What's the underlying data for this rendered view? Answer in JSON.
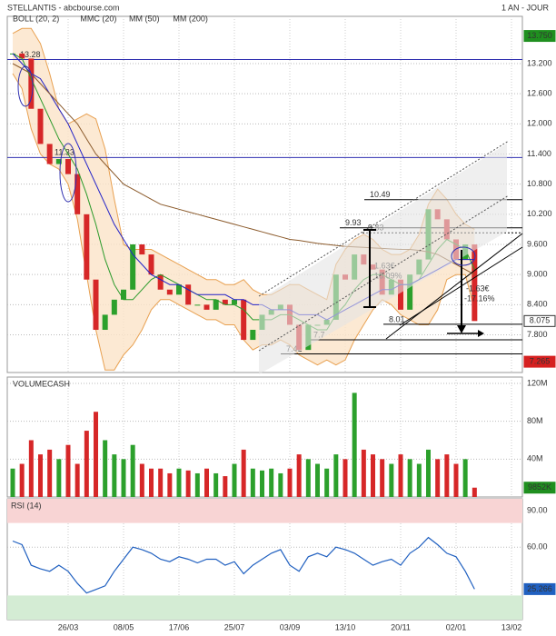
{
  "header": {
    "title": "STELLANTIS - abcbourse.com",
    "period": "1 AN - JOUR"
  },
  "chart_data": [
    {
      "type": "candlestick",
      "close": {
        "up_color": "#2ca02c",
        "down_color": "#d62728",
        "values": [
          13.4,
          13.3,
          12.3,
          11.6,
          11.2,
          11.3,
          11.0,
          10.2,
          8.9,
          7.9,
          8.2,
          8.5,
          8.7,
          9.6,
          9.4,
          9.0,
          8.7,
          8.6,
          8.8,
          8.4,
          8.4,
          8.3,
          8.5,
          8.4,
          8.5,
          7.7,
          7.9,
          8.2,
          8.3,
          8.4,
          8.0,
          7.5,
          8.0,
          8.0,
          8.1,
          9.0,
          8.9,
          9.4,
          9.2,
          9.1,
          8.6,
          8.9,
          8.3,
          9.0,
          9.3,
          10.3,
          10.1,
          9.7,
          9.3,
          9.6,
          8.075,
          null,
          null,
          null,
          null
        ]
      },
      "bands": {
        "name": "BOLL (20, 2)",
        "color": "#e8a050",
        "fill": "#fbe3c8",
        "upper": [
          13.8,
          13.9,
          13.9,
          13.6,
          13.0,
          12.3,
          12.0,
          12.1,
          12.2,
          12.1,
          11.5,
          10.5,
          9.6,
          9.5,
          9.5,
          9.5,
          9.4,
          9.3,
          9.2,
          9.1,
          9.0,
          8.9,
          8.9,
          8.8,
          8.8,
          8.9,
          8.7,
          8.6,
          8.6,
          8.7,
          8.8,
          8.8,
          8.7,
          8.6,
          8.5,
          9.2,
          9.5,
          9.7,
          9.8,
          9.7,
          9.5,
          9.4,
          9.4,
          9.5,
          9.8,
          10.4,
          10.7,
          10.5,
          10.2,
          10.0,
          9.9,
          null,
          null,
          null,
          null
        ],
        "lower": [
          13.0,
          12.7,
          11.9,
          11.4,
          11.2,
          11.1,
          10.8,
          10.1,
          9.0,
          7.9,
          7.1,
          7.1,
          7.4,
          7.6,
          7.9,
          8.3,
          8.5,
          8.5,
          8.4,
          8.3,
          8.2,
          8.1,
          8.1,
          8.0,
          8.0,
          7.7,
          7.5,
          7.6,
          7.6,
          7.7,
          7.6,
          7.4,
          7.3,
          7.2,
          7.3,
          7.2,
          7.3,
          7.7,
          8.0,
          8.3,
          8.5,
          8.4,
          8.2,
          8.1,
          8.0,
          8.0,
          8.3,
          8.9,
          9.0,
          9.0,
          8.3,
          null,
          null,
          null,
          null
        ]
      },
      "series": [
        {
          "name": "MMC (20)",
          "color": "#2a9a2a",
          "values": [
            13.4,
            13.3,
            12.9,
            12.5,
            12.1,
            11.7,
            11.4,
            11.1,
            10.6,
            10.0,
            9.3,
            8.8,
            8.5,
            8.5,
            8.7,
            8.9,
            9.0,
            8.9,
            8.8,
            8.7,
            8.6,
            8.5,
            8.5,
            8.4,
            8.4,
            8.3,
            8.1,
            8.1,
            8.1,
            8.2,
            8.2,
            8.1,
            8.0,
            7.9,
            7.9,
            8.2,
            8.4,
            8.7,
            8.9,
            9.0,
            9.0,
            8.9,
            8.8,
            8.8,
            8.9,
            9.2,
            9.5,
            9.7,
            9.6,
            9.5,
            9.1,
            null,
            null,
            null,
            null
          ]
        },
        {
          "name": "MM (50)",
          "color": "#2020c8",
          "values": [
            13.4,
            13.2,
            13.0,
            12.9,
            12.6,
            12.3,
            12.0,
            11.6,
            11.2,
            10.8,
            10.4,
            10.0,
            9.7,
            9.4,
            9.2,
            9.0,
            8.9,
            8.8,
            8.8,
            8.7,
            8.6,
            8.6,
            8.6,
            8.6,
            8.5,
            8.5,
            8.4,
            8.4,
            8.3,
            8.3,
            8.3,
            8.2,
            8.2,
            8.2,
            8.1,
            8.2,
            8.3,
            8.4,
            8.5,
            8.6,
            8.7,
            8.7,
            8.8,
            8.8,
            8.9,
            9.0,
            9.1,
            9.2,
            9.3,
            9.3,
            9.3,
            null,
            null,
            null,
            null
          ]
        },
        {
          "name": "MM (200)",
          "color": "#8b5a2b",
          "values": [
            13.2,
            13.1,
            13.0,
            12.8,
            12.6,
            12.4,
            12.2,
            12.0,
            11.7,
            11.4,
            11.2,
            11.0,
            10.8,
            10.7,
            10.6,
            10.5,
            10.4,
            10.35,
            10.3,
            10.25,
            10.2,
            10.15,
            10.1,
            10.05,
            10.0,
            9.95,
            9.9,
            9.85,
            9.8,
            9.75,
            9.7,
            9.68,
            9.65,
            9.62,
            9.6,
            9.58,
            9.56,
            9.55,
            9.54,
            9.53,
            9.52,
            9.51,
            9.5,
            9.5,
            9.48,
            9.45,
            9.4,
            9.3,
            9.2,
            9.1,
            9.0,
            null,
            null,
            null,
            null
          ]
        }
      ],
      "levels": [
        {
          "value": 13.28,
          "color": "#3030b0"
        },
        {
          "value": 11.33,
          "color": "#3030b0"
        },
        {
          "value": 10.49,
          "color": "#000000"
        },
        {
          "value": 9.93,
          "color": "#000000"
        },
        {
          "value": 9.83,
          "color": "#000000"
        },
        {
          "value": 8.01,
          "color": "#000000"
        },
        {
          "value": 7.7,
          "color": "#000000"
        },
        {
          "value": 7.42,
          "color": "#000000"
        }
      ],
      "annotations": [
        "1.63€",
        "18.09%",
        "-1.63€",
        "-17.16%"
      ],
      "high": {
        "value": 13.75,
        "label": "13.750"
      },
      "low": {
        "value": 7.265,
        "label": "7.265"
      },
      "ylim": [
        7.05,
        14.14
      ],
      "yticks": [
        {
          "value": 13.2,
          "label": "13.200"
        },
        {
          "value": 12.6,
          "label": "12.600"
        },
        {
          "value": 12.0,
          "label": "12.000"
        },
        {
          "value": 11.4,
          "label": "11.400"
        },
        {
          "value": 10.8,
          "label": "10.800"
        },
        {
          "value": 10.2,
          "label": "10.200"
        },
        {
          "value": 9.6,
          "label": "9.600"
        },
        {
          "value": 9.0,
          "label": "9.000"
        },
        {
          "value": 8.4,
          "label": "8.400"
        },
        {
          "value": 7.8,
          "label": "7.800"
        }
      ]
    },
    {
      "type": "bar",
      "title": "VOLUMECASH",
      "up_color": "#2ca02c",
      "down_color": "#d62728",
      "values": [
        30000000,
        35000000,
        60000000,
        45000000,
        50000000,
        40000000,
        55000000,
        35000000,
        70000000,
        90000000,
        60000000,
        45000000,
        40000000,
        55000000,
        35000000,
        30000000,
        30000000,
        25000000,
        30000000,
        28000000,
        25000000,
        30000000,
        25000000,
        22000000,
        35000000,
        50000000,
        30000000,
        28000000,
        30000000,
        25000000,
        30000000,
        45000000,
        40000000,
        35000000,
        30000000,
        45000000,
        40000000,
        110000000,
        50000000,
        45000000,
        40000000,
        35000000,
        45000000,
        40000000,
        35000000,
        50000000,
        40000000,
        45000000,
        35000000,
        40000000,
        9852000,
        null,
        null,
        null,
        null
      ],
      "last_label": "9852K",
      "ylim": [
        0,
        126700000
      ],
      "yticks": [
        {
          "value": 120000000,
          "label": "120M"
        },
        {
          "value": 80000000,
          "label": "80M"
        },
        {
          "value": 40000000,
          "label": "40M"
        }
      ]
    },
    {
      "type": "line",
      "title": "RSI (14)",
      "color": "#2060c0",
      "categories": [
        null,
        null,
        null,
        null,
        null,
        null,
        "26/03",
        null,
        null,
        null,
        null,
        null,
        "08/05",
        null,
        null,
        null,
        null,
        null,
        "17/06",
        null,
        null,
        null,
        null,
        null,
        "25/07",
        null,
        null,
        null,
        null,
        null,
        "03/09",
        null,
        null,
        null,
        null,
        null,
        "13/10",
        null,
        null,
        null,
        null,
        null,
        "20/11",
        null,
        null,
        null,
        null,
        null,
        "02/01",
        null,
        null,
        null,
        null,
        null,
        "13/02"
      ],
      "values": [
        65,
        62,
        45,
        42,
        40,
        45,
        40,
        30,
        22,
        25,
        28,
        40,
        50,
        60,
        58,
        55,
        50,
        48,
        52,
        50,
        47,
        50,
        50,
        45,
        48,
        38,
        45,
        50,
        55,
        58,
        45,
        40,
        52,
        55,
        52,
        60,
        58,
        55,
        50,
        45,
        48,
        50,
        45,
        55,
        60,
        68,
        62,
        55,
        52,
        40,
        25.266,
        null,
        null,
        null,
        null
      ],
      "zones": [
        {
          "from": 80,
          "to": 100,
          "color": "#f8d4d4"
        },
        {
          "from": 0,
          "to": 20,
          "color": "#d4ecd4"
        }
      ],
      "ylim": [
        0,
        100
      ],
      "yticks": [
        {
          "value": 90,
          "label": "90.00"
        },
        {
          "value": 60,
          "label": "60.00"
        }
      ]
    }
  ]
}
